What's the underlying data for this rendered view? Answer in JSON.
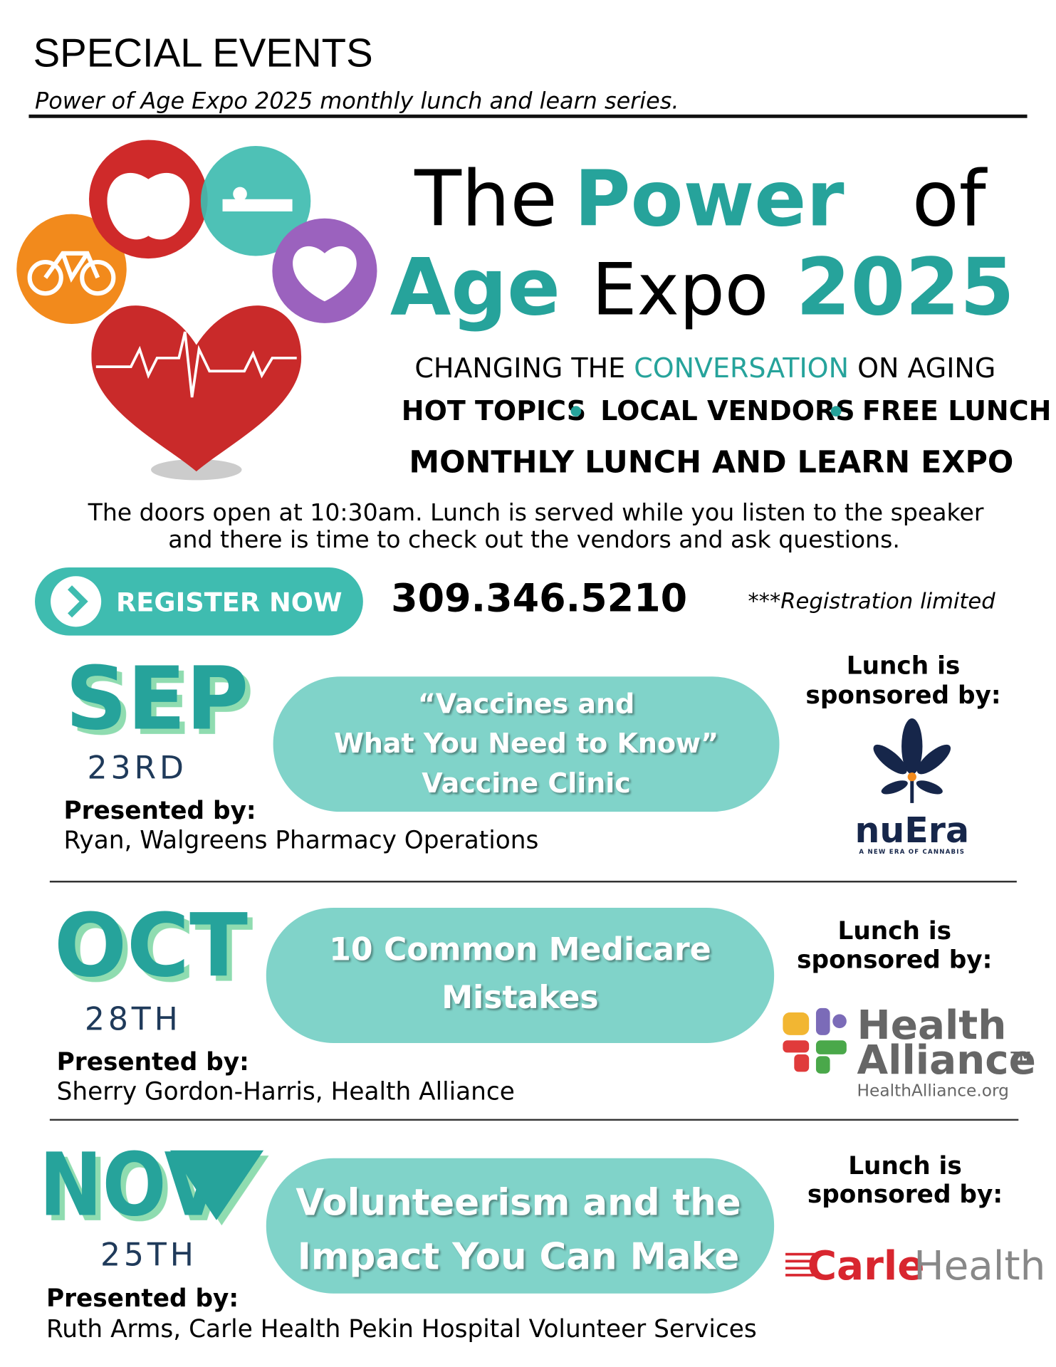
{
  "header": {
    "title": "SPECIAL EVENTS",
    "subtitle": "Power of Age Expo 2025 monthly lunch and learn series."
  },
  "expo": {
    "title_line1": [
      "The",
      "Power",
      "of"
    ],
    "title_line2": [
      "Age",
      "Expo",
      "2025"
    ],
    "tagline": [
      "CHANGING THE ",
      "CONVERSATION",
      " ON AGING"
    ],
    "features": [
      "HOT TOPICS",
      "LOCAL VENDORS",
      "FREE LUNCH"
    ],
    "monthly": "MONTHLY LUNCH AND LEARN EXPO",
    "intro": [
      "The doors open at 10:30am.  Lunch is served while you listen to the speaker",
      "and there is time to check out the vendors and ask questions."
    ]
  },
  "register": {
    "button": "REGISTER NOW",
    "phone": "309.346.5210",
    "note": "***Registration limited"
  },
  "events": [
    {
      "month": "SEP",
      "day": "23RD",
      "presented_label": "Presented by:",
      "presenter": "Ryan, Walgreens Pharmacy Operations",
      "topic": [
        "“Vaccines and",
        "What You Need to Know”",
        "Vaccine  Clinic"
      ],
      "sponsor_label": [
        "Lunch is",
        "sponsored by:"
      ],
      "sponsor": {
        "name": "nuEra",
        "tagline": "A NEW ERA OF CANNABIS"
      }
    },
    {
      "month": "OCT",
      "day": "28TH",
      "presented_label": "Presented by:",
      "presenter": "Sherry Gordon-Harris, Health Alliance",
      "topic": [
        "10 Common Medicare",
        "Mistakes"
      ],
      "sponsor_label": [
        "Lunch is",
        "sponsored by:"
      ],
      "sponsor": {
        "name": [
          "Health",
          "Alliance"
        ],
        "mark": "TM",
        "url": "HealthAlliance.org"
      }
    },
    {
      "month": "NOV",
      "day": "25TH",
      "presented_label": "Presented by:",
      "presenter": "Ruth Arms, Carle Health Pekin Hospital Volunteer Services",
      "topic": [
        "Volunteerism and the",
        "Impact You Can Make"
      ],
      "sponsor_label": [
        "Lunch is",
        "sponsored by:"
      ],
      "sponsor": {
        "name": [
          "Carle",
          "Health"
        ]
      }
    }
  ]
}
